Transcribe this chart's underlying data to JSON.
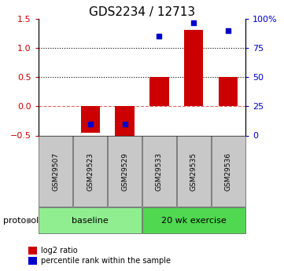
{
  "title": "GDS2234 / 12713",
  "samples": [
    "GSM29507",
    "GSM29523",
    "GSM29529",
    "GSM29533",
    "GSM29535",
    "GSM29536"
  ],
  "log2_ratio": [
    0.0,
    -0.45,
    -0.5,
    0.5,
    1.32,
    0.5
  ],
  "percentile_rank": [
    null,
    10,
    10,
    85,
    97,
    90
  ],
  "ylim_left": [
    -0.5,
    1.5
  ],
  "ylim_right": [
    0,
    100
  ],
  "yticks_left": [
    -0.5,
    0,
    0.5,
    1.0,
    1.5
  ],
  "yticks_right": [
    0,
    25,
    50,
    75,
    100
  ],
  "ytick_labels_right": [
    "0",
    "25",
    "50",
    "75",
    "100%"
  ],
  "hlines_dotted": [
    0.5,
    1.0
  ],
  "hline_dashed": 0,
  "groups": [
    {
      "label": "baseline",
      "samples": [
        0,
        1,
        2
      ],
      "color": "#90ee90"
    },
    {
      "label": "20 wk exercise",
      "samples": [
        3,
        4,
        5
      ],
      "color": "#50d850"
    }
  ],
  "bar_color": "#cc0000",
  "dot_color": "#0000cc",
  "bar_width": 0.55,
  "background_color": "#ffffff",
  "title_fontsize": 11,
  "axis_label_color_left": "#cc0000",
  "axis_label_color_right": "#0000cc",
  "legend_items": [
    {
      "label": "log2 ratio",
      "color": "#cc0000"
    },
    {
      "label": "percentile rank within the sample",
      "color": "#0000cc"
    }
  ],
  "protocol_label": "protocol",
  "sample_box_color": "#c8c8c8"
}
